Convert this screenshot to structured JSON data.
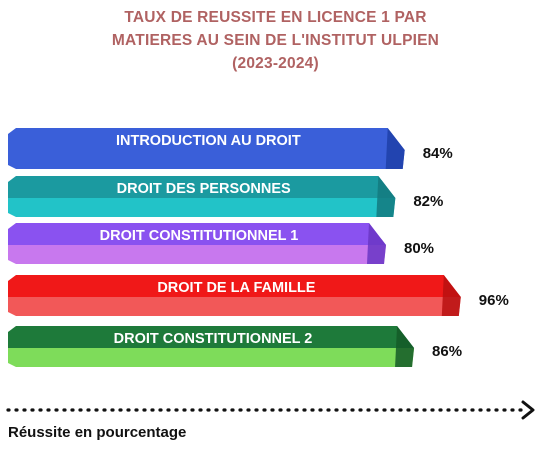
{
  "chart_data": {
    "type": "bar",
    "orientation": "horizontal",
    "title": [
      "TAUX DE REUSSITE EN LICENCE 1 PAR",
      "MATIERES AU SEIN DE L'INSTITUT ULPIEN",
      "(2023-2024)"
    ],
    "xlabel": "Réussite en pourcentage",
    "ylabel": "",
    "categories": [
      "INTRODUCTION AU DROIT",
      "DROIT DES PERSONNES",
      "DROIT CONSTITUTIONNEL 1",
      "DROIT DE LA FAMILLE",
      "DROIT CONSTITUTIONNEL 2"
    ],
    "values": [
      84,
      82,
      80,
      96,
      86
    ],
    "value_labels": [
      "84%",
      "82%",
      "80%",
      "96%",
      "86%"
    ],
    "colors": [
      {
        "top": "#3a5fd9",
        "front": "#3a5fd9",
        "side": "#1f3fa8"
      },
      {
        "top": "#1b9aa0",
        "front": "#22c3c8",
        "side": "#137a7f"
      },
      {
        "top": "#8a52f0",
        "front": "#c878ee",
        "side": "#6a36c4"
      },
      {
        "top": "#f01818",
        "front": "#f25858",
        "side": "#b81010"
      },
      {
        "top": "#1e7a3a",
        "front": "#7edc5a",
        "side": "#145a28"
      }
    ],
    "axis_arrow": "dotted"
  }
}
